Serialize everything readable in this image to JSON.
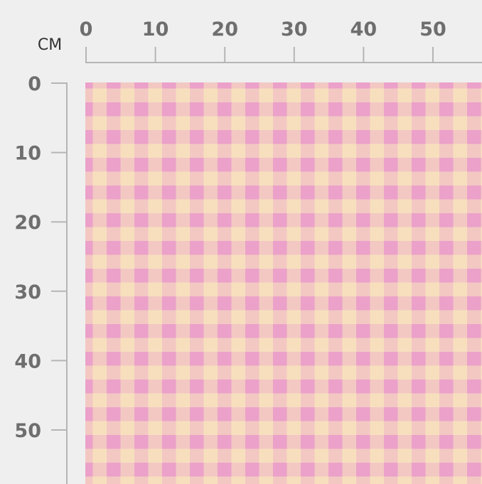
{
  "unit": "CM",
  "x_ruler": {
    "ticks": [
      0,
      10,
      20,
      30,
      40,
      50
    ]
  },
  "y_ruler": {
    "ticks": [
      0,
      10,
      20,
      30,
      40,
      50
    ]
  }
}
